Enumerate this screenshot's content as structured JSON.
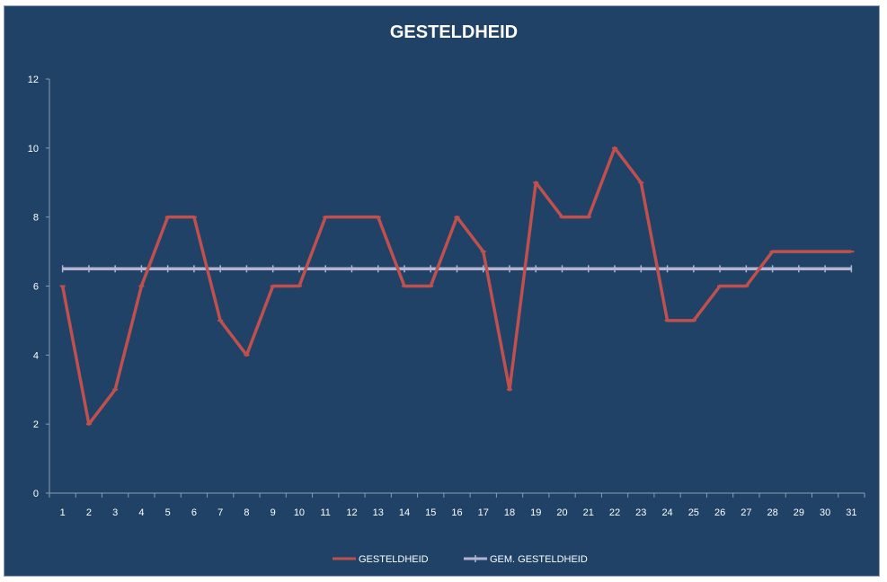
{
  "chart_data": {
    "type": "line",
    "title": "GESTELDHEID",
    "categories": [
      "1",
      "2",
      "3",
      "4",
      "5",
      "6",
      "7",
      "8",
      "9",
      "10",
      "11",
      "12",
      "13",
      "14",
      "15",
      "16",
      "17",
      "18",
      "19",
      "20",
      "21",
      "22",
      "23",
      "24",
      "25",
      "26",
      "27",
      "28",
      "29",
      "30",
      "31"
    ],
    "series": [
      {
        "name": "GESTELDHEID",
        "color": "#c0504d",
        "values": [
          6,
          2,
          3,
          6,
          8,
          8,
          5,
          4,
          6,
          6,
          8,
          8,
          8,
          6,
          6,
          8,
          7,
          3,
          9,
          8,
          8,
          10,
          9,
          5,
          5,
          6,
          6,
          7,
          7,
          7,
          7
        ]
      },
      {
        "name": "GEM. GESTELDHEID",
        "color": "#b4b4d2",
        "values": [
          6.5,
          6.5,
          6.5,
          6.5,
          6.5,
          6.5,
          6.5,
          6.5,
          6.5,
          6.5,
          6.5,
          6.5,
          6.5,
          6.5,
          6.5,
          6.5,
          6.5,
          6.5,
          6.5,
          6.5,
          6.5,
          6.5,
          6.5,
          6.5,
          6.5,
          6.5,
          6.5,
          6.5,
          6.5,
          6.5,
          6.5
        ]
      }
    ],
    "yticks": [
      "0",
      "2",
      "4",
      "6",
      "8",
      "10",
      "12"
    ],
    "ylim": [
      0,
      12
    ],
    "grid": false,
    "legend": "bottom",
    "background": "#1f4266",
    "axis_color": "#8a9db3"
  }
}
